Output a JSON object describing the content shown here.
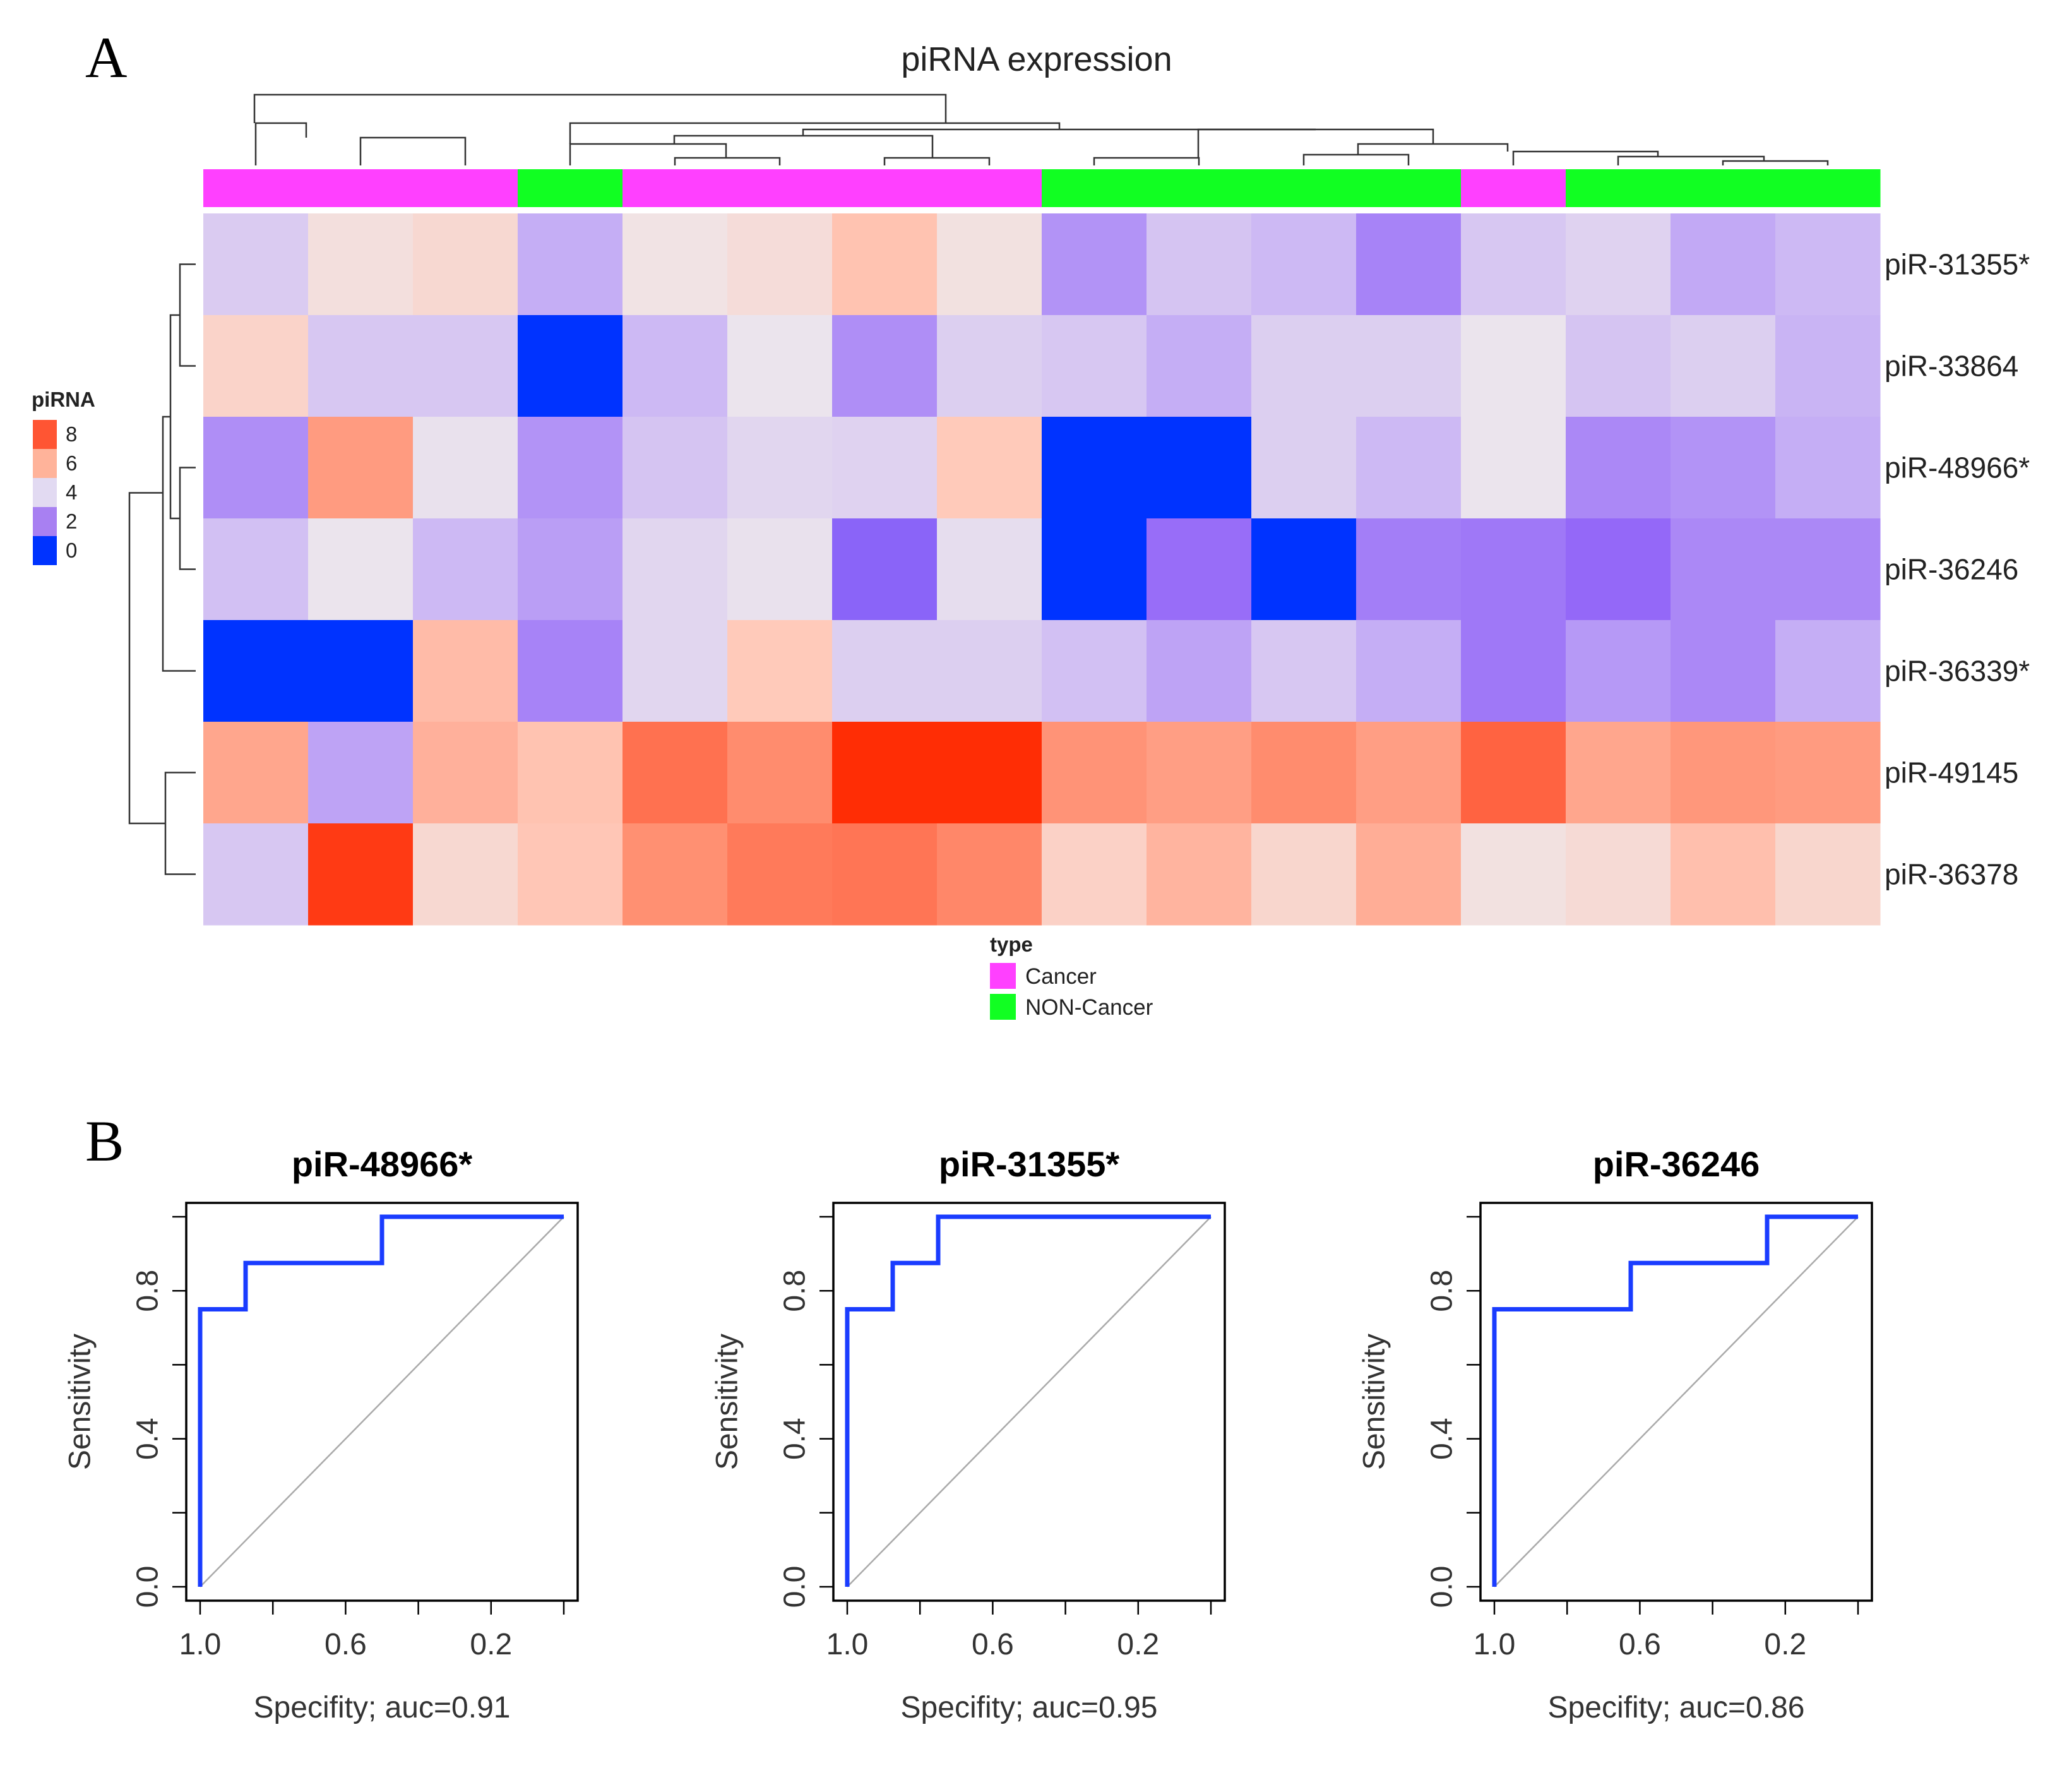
{
  "panel_labels": {
    "a": "A",
    "b": "B"
  },
  "chart_data": [
    {
      "type": "heatmap",
      "title": "piRNA expression",
      "rows": [
        "piR-31355*",
        "piR-33864",
        "piR-48966*",
        "piR-36246",
        "piR-36339*",
        "piR-49145",
        "piR-36378"
      ],
      "column_groups": [
        "Cancer",
        "Cancer",
        "Cancer",
        "NON-Cancer",
        "Cancer",
        "Cancer",
        "Cancer",
        "Cancer",
        "NON-Cancer",
        "NON-Cancer",
        "NON-Cancer",
        "NON-Cancer",
        "Cancer",
        "NON-Cancer",
        "NON-Cancer",
        "NON-Cancer"
      ],
      "values": [
        [
          3.5,
          4.7,
          5.0,
          2.8,
          4.5,
          4.8,
          5.8,
          4.6,
          2.3,
          3.3,
          3.0,
          2.0,
          3.4,
          3.7,
          2.7,
          3.0
        ],
        [
          5.2,
          3.4,
          3.4,
          0.0,
          3.0,
          4.2,
          2.2,
          3.6,
          3.4,
          2.8,
          3.6,
          3.6,
          4.2,
          3.3,
          3.6,
          2.9
        ],
        [
          2.2,
          6.9,
          4.1,
          2.3,
          3.3,
          3.8,
          3.7,
          5.6,
          0.0,
          0.0,
          3.6,
          3.0,
          4.2,
          2.1,
          2.3,
          2.8
        ],
        [
          3.2,
          4.2,
          3.0,
          2.5,
          3.8,
          4.1,
          1.4,
          4.0,
          0.0,
          1.6,
          0.0,
          1.9,
          1.8,
          1.5,
          2.1,
          2.1
        ],
        [
          0.0,
          0.0,
          6.0,
          2.0,
          3.8,
          5.6,
          3.6,
          3.6,
          3.2,
          2.6,
          3.4,
          2.8,
          1.8,
          2.4,
          2.1,
          2.8
        ],
        [
          6.6,
          2.6,
          6.3,
          5.8,
          7.9,
          7.3,
          9.4,
          9.4,
          7.1,
          6.8,
          7.3,
          6.8,
          8.2,
          6.6,
          7.0,
          6.9
        ],
        [
          3.4,
          9.1,
          5.0,
          5.7,
          7.2,
          7.7,
          7.8,
          7.4,
          5.3,
          6.2,
          5.1,
          6.4,
          4.6,
          4.9,
          5.9,
          5.1
        ]
      ],
      "row_dendrogram": "(((piR-31355*,piR-33864),(piR-48966*,piR-36246)),piR-36339*),(piR-49145,piR-36378)",
      "column_dendrogram": "clustered",
      "color_legend": {
        "title": "piRNA",
        "ticks": [
          "8",
          "6",
          "4",
          "2",
          "0"
        ],
        "colors": [
          "#ff5533",
          "#ffb39a",
          "#e2daf2",
          "#a880f2",
          "#0033ff"
        ]
      },
      "annotation_legend": {
        "title": "type",
        "items": [
          {
            "label": "Cancer",
            "color": "#ff40ff"
          },
          {
            "label": "NON-Cancer",
            "color": "#11ff22"
          }
        ]
      }
    },
    {
      "type": "line",
      "title": "piR-48966*",
      "xlabel": "Specifity; auc=0.91",
      "ylabel": "Sensitivity",
      "xlim": [
        1.0,
        0.0
      ],
      "ylim": [
        0.0,
        1.0
      ],
      "xticks": [
        "1.0",
        "0.6",
        "0.2"
      ],
      "yticks": [
        "0.0",
        "0.4",
        "0.8"
      ],
      "auc": 0.91,
      "x": [
        1.0,
        1.0,
        0.875,
        0.875,
        0.5,
        0.5,
        0.0
      ],
      "y": [
        0.0,
        0.75,
        0.75,
        0.875,
        0.875,
        1.0,
        1.0
      ]
    },
    {
      "type": "line",
      "title": "piR-31355*",
      "xlabel": "Specifity; auc=0.95",
      "ylabel": "Sensitivity",
      "xlim": [
        1.0,
        0.0
      ],
      "ylim": [
        0.0,
        1.0
      ],
      "xticks": [
        "1.0",
        "0.6",
        "0.2"
      ],
      "yticks": [
        "0.0",
        "0.4",
        "0.8"
      ],
      "auc": 0.95,
      "x": [
        1.0,
        1.0,
        0.875,
        0.875,
        0.75,
        0.75,
        0.0
      ],
      "y": [
        0.0,
        0.75,
        0.75,
        0.875,
        0.875,
        1.0,
        1.0
      ]
    },
    {
      "type": "line",
      "title": "piR-36246",
      "xlabel": "Specifity; auc=0.86",
      "ylabel": "Sensitivity",
      "xlim": [
        1.0,
        0.0
      ],
      "ylim": [
        0.0,
        1.0
      ],
      "xticks": [
        "1.0",
        "0.6",
        "0.2"
      ],
      "yticks": [
        "0.0",
        "0.4",
        "0.8"
      ],
      "auc": 0.86,
      "x": [
        1.0,
        1.0,
        0.625,
        0.625,
        0.25,
        0.25,
        0.0
      ],
      "y": [
        0.0,
        0.75,
        0.75,
        0.875,
        0.875,
        1.0,
        1.0
      ]
    }
  ]
}
